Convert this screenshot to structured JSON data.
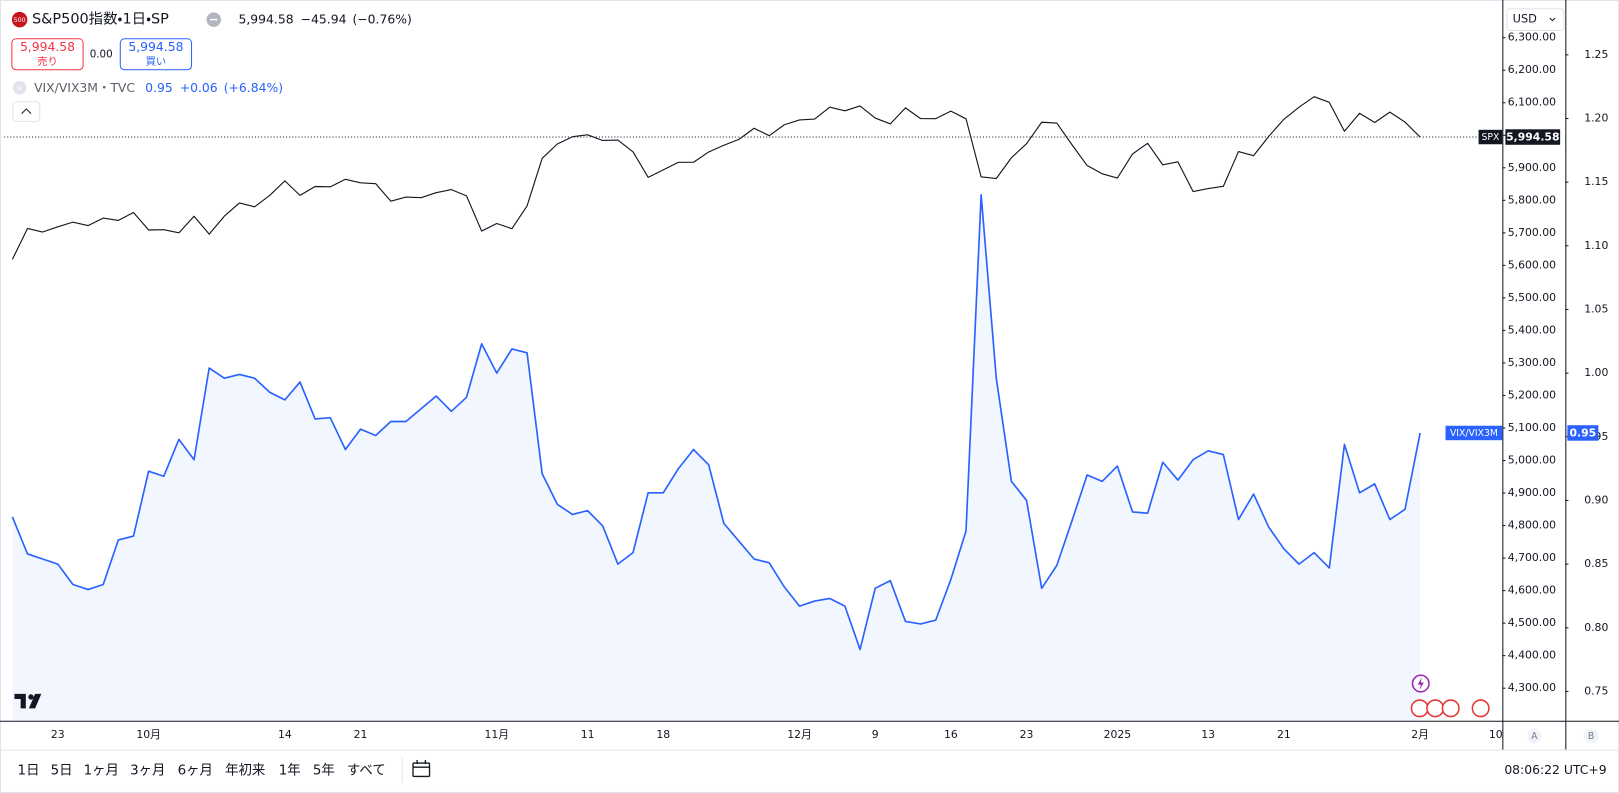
{
  "header": {
    "badge": "500",
    "title": "S&P500指数・1日・SP",
    "price": "5,994.58",
    "change": "−45.94",
    "change_pct": "(−0.76%)",
    "sell_price": "5,994.58",
    "sell_label": "売り",
    "spread": "0.00",
    "buy_price": "5,994.58",
    "buy_label": "買い"
  },
  "overlay": {
    "badge": "V",
    "title": "VIX/VIX3M・TVC",
    "value": "0.95",
    "change": "+0.06",
    "change_pct": "(+6.84%)"
  },
  "currency": "USD",
  "chart_data": {
    "type": "line",
    "categories": [
      null,
      null,
      null,
      "23",
      null,
      null,
      null,
      null,
      null,
      "10月",
      null,
      null,
      null,
      null,
      null,
      null,
      null,
      null,
      "14",
      null,
      null,
      null,
      null,
      "21",
      null,
      null,
      null,
      null,
      null,
      null,
      null,
      null,
      "11月",
      null,
      null,
      null,
      null,
      null,
      "11",
      null,
      null,
      null,
      null,
      "18",
      null,
      null,
      null,
      null,
      null,
      null,
      null,
      null,
      "12月",
      null,
      null,
      null,
      null,
      "9",
      null,
      null,
      null,
      null,
      "16",
      null,
      null,
      null,
      null,
      "23",
      null,
      null,
      null,
      null,
      null,
      "2025",
      null,
      null,
      null,
      null,
      null,
      "13",
      null,
      null,
      null,
      null,
      "21",
      null,
      null,
      null,
      null,
      null,
      null,
      null,
      null,
      "2月",
      null,
      null,
      null,
      null,
      "10"
    ],
    "series": [
      {
        "name": "SPX",
        "color": "#131722",
        "last_label": "5,994.58",
        "values": [
          5618.26,
          5713.64,
          5702.55,
          5718.57,
          5732.93,
          5722.26,
          5745.37,
          5738.17,
          5762.48,
          5708.75,
          5709.54,
          5699.94,
          5751.07,
          5695.94,
          5751.13,
          5792.04,
          5780.05,
          5815.03,
          5859.85,
          5815.26,
          5842.47,
          5841.47,
          5864.67,
          5853.98,
          5851.2,
          5797.42,
          5809.86,
          5808.12,
          5823.52,
          5832.92,
          5813.67,
          5705.45,
          5728.8,
          5712.69,
          5782.76,
          5929.04,
          5973.1,
          5995.54,
          6001.35,
          5983.99,
          5985.38,
          5949.17,
          5870.62,
          5893.62,
          5916.98,
          5917.11,
          5948.71,
          5969.34,
          5987.37,
          6021.63,
          5998.74,
          6032.38,
          6047.15,
          6049.88,
          6086.49,
          6075.11,
          6090.27,
          6052.85,
          6034.91,
          6084.19,
          6051.25,
          6051.09,
          6074.08,
          6050.61,
          5872.16,
          5867.08,
          5930.85,
          5974.07,
          6040.04,
          6037.59,
          5970.84,
          5906.94,
          5881.63,
          5868.55,
          5942.47,
          5975.38,
          5909.03,
          5918.25,
          5827.04,
          5836.22,
          5842.91,
          5949.91,
          5937.34,
          5996.66,
          6049.24,
          6086.37,
          6118.71,
          6101.24,
          6012.28,
          6067.7,
          6039.31,
          6071.17,
          6040.53,
          5994.58,
          null,
          null,
          null,
          null,
          null
        ]
      },
      {
        "name": "VIX/VIX3M",
        "color": "#2962ff",
        "axis": "y2",
        "last_label": "0.95",
        "values": [
          0.887,
          0.858,
          0.854,
          0.85,
          0.834,
          0.83,
          0.834,
          0.869,
          0.872,
          0.923,
          0.919,
          0.948,
          0.932,
          1.004,
          0.996,
          0.999,
          0.996,
          0.985,
          0.979,
          0.993,
          0.964,
          0.965,
          0.94,
          0.956,
          0.951,
          0.962,
          0.962,
          0.972,
          0.982,
          0.97,
          0.981,
          1.023,
          1.0,
          1.019,
          1.016,
          0.921,
          0.897,
          0.889,
          0.892,
          0.88,
          0.85,
          0.859,
          0.906,
          0.906,
          0.925,
          0.94,
          0.928,
          0.882,
          0.868,
          0.854,
          0.851,
          0.832,
          0.817,
          0.821,
          0.823,
          0.817,
          0.783,
          0.831,
          0.837,
          0.805,
          0.803,
          0.806,
          0.838,
          0.876,
          1.14,
          0.996,
          0.915,
          0.9,
          0.831,
          0.849,
          0.884,
          0.92,
          0.915,
          0.927,
          0.891,
          0.89,
          0.93,
          0.916,
          0.932,
          0.939,
          0.936,
          0.885,
          0.905,
          0.879,
          0.862,
          0.85,
          0.859,
          0.847,
          0.944,
          0.906,
          0.913,
          0.885,
          0.893,
          0.953,
          null,
          null,
          null,
          null,
          null
        ]
      }
    ],
    "ylim": [
      4200,
      6400
    ],
    "yticks": [
      {
        "value": 4300,
        "label": "4,300.00"
      },
      {
        "value": 4400,
        "label": "4,400.00"
      },
      {
        "value": 4500,
        "label": "4,500.00"
      },
      {
        "value": 4600,
        "label": "4,600.00"
      },
      {
        "value": 4700,
        "label": "4,700.00"
      },
      {
        "value": 4800,
        "label": "4,800.00"
      },
      {
        "value": 4900,
        "label": "4,900.00"
      },
      {
        "value": 5000,
        "label": "5,000.00"
      },
      {
        "value": 5100,
        "label": "5,100.00"
      },
      {
        "value": 5200,
        "label": "5,200.00"
      },
      {
        "value": 5300,
        "label": "5,300.00"
      },
      {
        "value": 5400,
        "label": "5,400.00"
      },
      {
        "value": 5500,
        "label": "5,500.00"
      },
      {
        "value": 5600,
        "label": "5,600.00"
      },
      {
        "value": 5700,
        "label": "5,700.00"
      },
      {
        "value": 5800,
        "label": "5,800.00"
      },
      {
        "value": 5900,
        "label": "5,900.00"
      },
      {
        "value": 6000,
        "label": "6,000.00"
      },
      {
        "value": 6100,
        "label": "6,100.00"
      },
      {
        "value": 6200,
        "label": "6,200.00"
      },
      {
        "value": 6300,
        "label": "6,300.00"
      }
    ],
    "y2lim": [
      0.727,
      1.289
    ],
    "y2ticks": [
      0.75,
      {
        "value": 0.8,
        "label": "0.80"
      },
      0.85,
      {
        "value": 0.9,
        "label": "0.90"
      },
      0.95,
      {
        "value": 1,
        "label": "1.00"
      },
      1.05,
      {
        "value": 1.1,
        "label": "1.10"
      },
      1.15,
      {
        "value": 1.2,
        "label": "1.20"
      },
      1.25
    ],
    "grid": false
  },
  "scale_buttons": [
    "A",
    "B"
  ],
  "timeframes": [
    "1日",
    "5日",
    "1ヶ月",
    "3ヶ月",
    "6ヶ月",
    "年初来",
    "1年",
    "5年",
    "すべて"
  ],
  "clock": "08:06:22 UTC+9"
}
